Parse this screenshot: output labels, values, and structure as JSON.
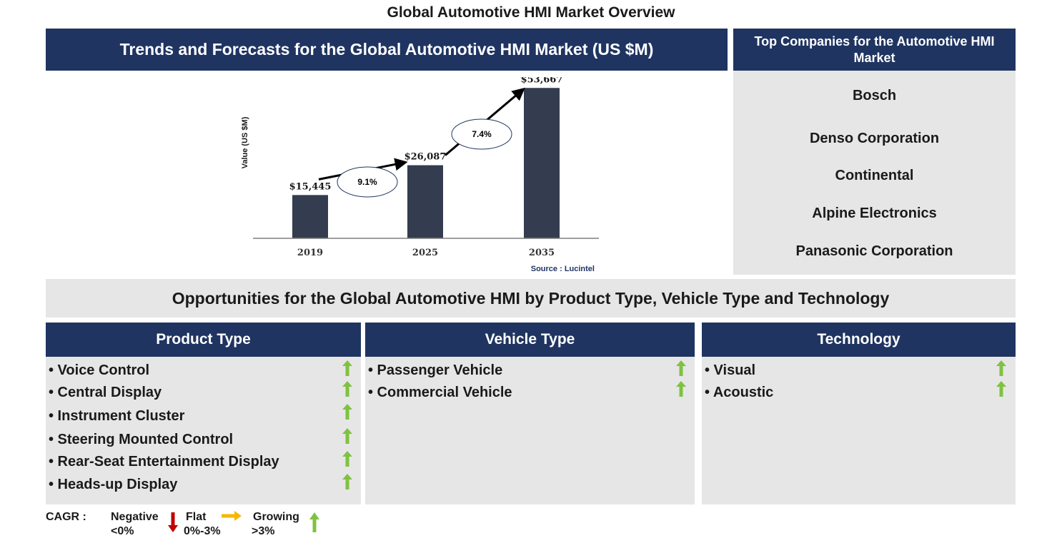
{
  "title": "Global Automotive HMI Market Overview",
  "trend_header": "Trends and Forecasts for the Global Automotive HMI Market (US $M)",
  "companies_header": "Top Companies for the Automotive HMI Market",
  "companies": [
    "Bosch",
    "Denso Corporation",
    "Continental",
    "Alpine Electronics",
    "Panasonic Corporation"
  ],
  "chart_data": {
    "type": "bar",
    "categories": [
      "2019",
      "2025",
      "2035"
    ],
    "values": [
      15445,
      26087,
      53667
    ],
    "value_labels": [
      "$15,445",
      "$26,087",
      "$53,667"
    ],
    "ylabel": "Value (US $M)",
    "ylim": [
      0,
      55000
    ],
    "cagr": [
      {
        "from": "2019",
        "to": "2025",
        "label": "9.1%"
      },
      {
        "from": "2025",
        "to": "2035",
        "label": "7.4%"
      }
    ],
    "source": "Source : Lucintel",
    "bar_color": "#333d4f"
  },
  "opportunities_banner": "Opportunities for the Global Automotive HMI by Product Type, Vehicle Type and Technology",
  "segments": {
    "product": {
      "title": "Product Type",
      "items": [
        "• Voice Control",
        "• Central Display",
        "• Instrument Cluster",
        "• Steering Mounted Control",
        "• Rear-Seat Entertainment Display",
        "• Heads-up Display"
      ],
      "trend": [
        "growing",
        "growing",
        "growing",
        "growing",
        "growing",
        "growing"
      ]
    },
    "vehicle": {
      "title": "Vehicle Type",
      "items": [
        "• Passenger Vehicle",
        "• Commercial Vehicle"
      ],
      "trend": [
        "growing",
        "growing"
      ]
    },
    "technology": {
      "title": "Technology",
      "items": [
        "• Visual",
        "• Acoustic"
      ],
      "trend": [
        "growing",
        "growing"
      ]
    }
  },
  "legend": {
    "cagr_label": "CAGR :",
    "negative": "Negative",
    "negative_range": "<0%",
    "flat": "Flat",
    "flat_range": "0%-3%",
    "growing": "Growing",
    "growing_range": ">3%"
  },
  "colors": {
    "header_navy": "#1f3461",
    "panel_gray": "#e6e6e6",
    "growing_green": "#7fc241",
    "flat_yellow": "#f5b800",
    "negative_red": "#c00000"
  }
}
